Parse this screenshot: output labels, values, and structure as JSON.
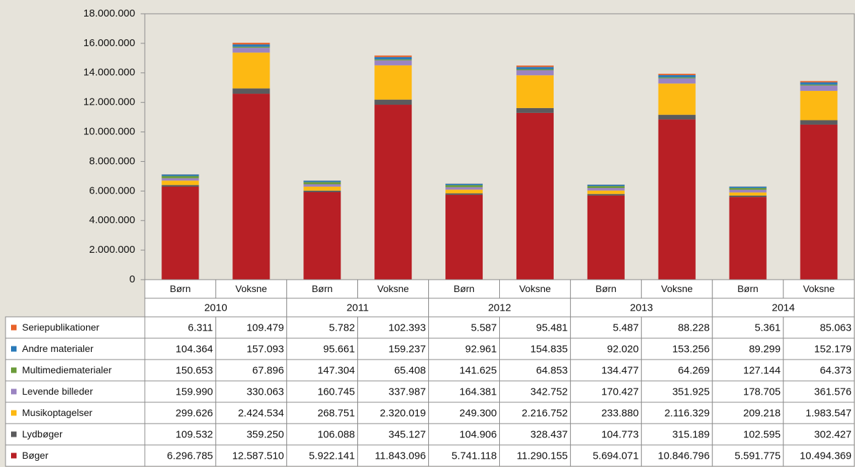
{
  "chart_data": {
    "type": "bar",
    "stacked": true,
    "categories": [
      "Børn",
      "Voksne",
      "Børn",
      "Voksne",
      "Børn",
      "Voksne",
      "Børn",
      "Voksne",
      "Børn",
      "Voksne"
    ],
    "category_groups": [
      "2010",
      "2011",
      "2012",
      "2013",
      "2014"
    ],
    "ylim": [
      0,
      18000000
    ],
    "yticks": [
      0,
      {
        "value": 2000000,
        "label": "2.000.000"
      },
      {
        "value": 4000000,
        "label": "4.000.000"
      },
      {
        "value": 6000000,
        "label": "6.000.000"
      },
      {
        "value": 8000000,
        "label": "8.000.000"
      },
      {
        "value": 10000000,
        "label": "10.000.000"
      },
      {
        "value": 12000000,
        "label": "12.000.000"
      },
      {
        "value": 14000000,
        "label": "14.000.000"
      },
      {
        "value": 16000000,
        "label": "16.000.000"
      },
      {
        "value": 18000000,
        "label": "18.000.000"
      }
    ],
    "series": [
      {
        "name": "Bøger",
        "color": "#b81f25",
        "values": [
          6296785,
          12587510,
          5922141,
          11843096,
          5741118,
          11290155,
          5694071,
          10846796,
          5591775,
          10494369
        ],
        "value_labels": [
          "6.296.785",
          "12.587.510",
          "5.922.141",
          "11.843.096",
          "5.741.118",
          "11.290.155",
          "5.694.071",
          "10.846.796",
          "5.591.775",
          "10.494.369"
        ]
      },
      {
        "name": "Lydbøger",
        "color": "#5b5b5d",
        "values": [
          109532,
          359250,
          106088,
          345127,
          104906,
          328437,
          104773,
          315189,
          102595,
          302427
        ],
        "value_labels": [
          "109.532",
          "359.250",
          "106.088",
          "345.127",
          "104.906",
          "328.437",
          "104.773",
          "315.189",
          "102.595",
          "302.427"
        ]
      },
      {
        "name": "Musikoptagelser",
        "color": "#fdb913",
        "values": [
          299626,
          2424534,
          268751,
          2320019,
          249300,
          2216752,
          233880,
          2116329,
          209218,
          1983547
        ],
        "value_labels": [
          "299.626",
          "2.424.534",
          "268.751",
          "2.320.019",
          "249.300",
          "2.216.752",
          "233.880",
          "2.116.329",
          "209.218",
          "1.983.547"
        ]
      },
      {
        "name": "Levende billeder",
        "color": "#9b84c2",
        "values": [
          159990,
          330063,
          160745,
          337987,
          164381,
          342752,
          170427,
          351925,
          178705,
          361576
        ],
        "value_labels": [
          "159.990",
          "330.063",
          "160.745",
          "337.987",
          "164.381",
          "342.752",
          "170.427",
          "351.925",
          "178.705",
          "361.576"
        ]
      },
      {
        "name": "Multimediematerialer",
        "color": "#6b9b3a",
        "values": [
          150653,
          67896,
          147304,
          65408,
          141625,
          64853,
          134477,
          64269,
          127144,
          64373
        ],
        "value_labels": [
          "150.653",
          "67.896",
          "147.304",
          "65.408",
          "141.625",
          "64.853",
          "134.477",
          "64.269",
          "127.144",
          "64.373"
        ]
      },
      {
        "name": "Andre materialer",
        "color": "#2a7ab9",
        "values": [
          104364,
          157093,
          95661,
          159237,
          92961,
          154835,
          92020,
          153256,
          89299,
          152179
        ],
        "value_labels": [
          "104.364",
          "157.093",
          "95.661",
          "159.237",
          "92.961",
          "154.835",
          "92.020",
          "153.256",
          "89.299",
          "152.179"
        ]
      },
      {
        "name": "Seriepublikationer",
        "color": "#e8622a",
        "values": [
          6311,
          109479,
          5782,
          102393,
          5587,
          95481,
          5487,
          88228,
          5361,
          85063
        ],
        "value_labels": [
          "6.311",
          "109.479",
          "5.782",
          "102.393",
          "5.587",
          "95.481",
          "5.487",
          "88.228",
          "5.361",
          "85.063"
        ]
      }
    ]
  }
}
